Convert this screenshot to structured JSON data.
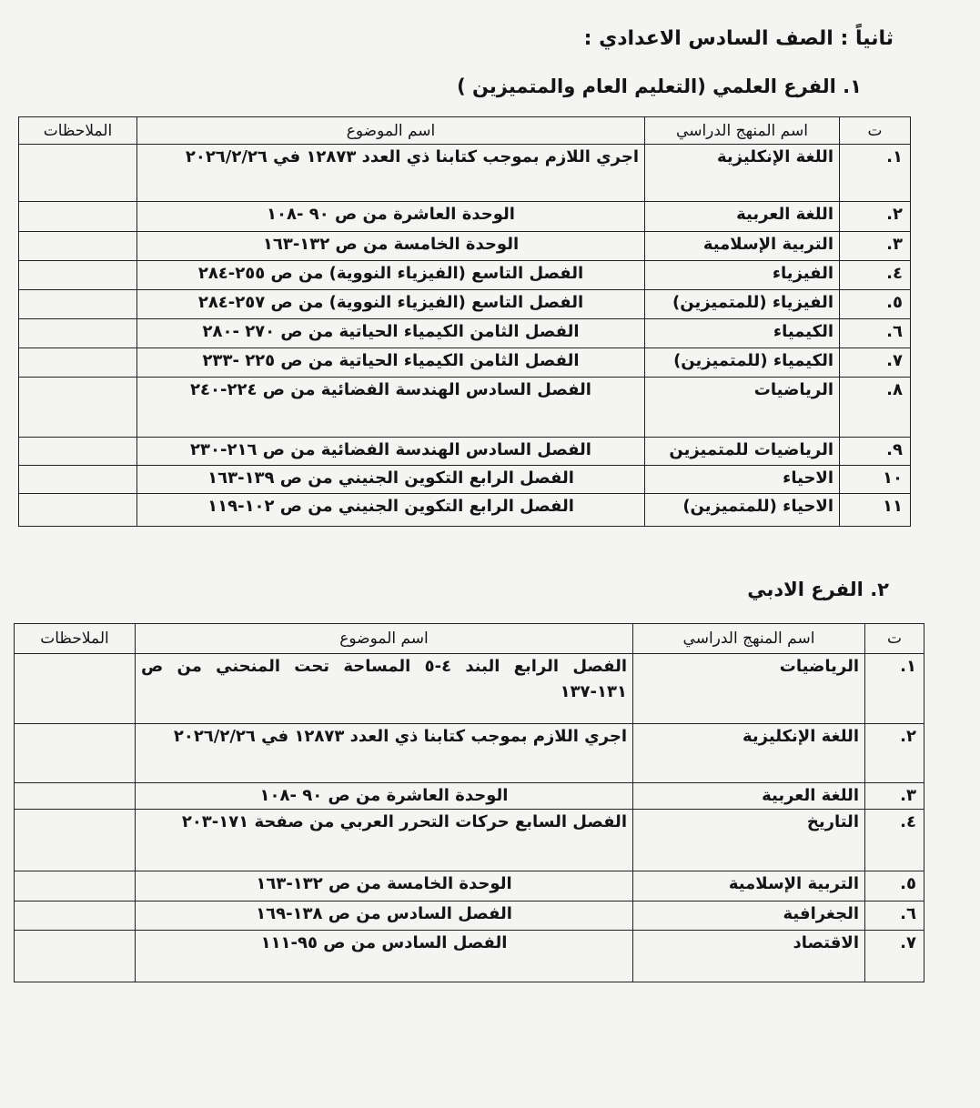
{
  "heading": "ثانياً : الصف السادس الاعدادي :",
  "columns": {
    "num": "ت",
    "subject": "اسم المنهج الدراسي",
    "topic": "اسم الموضوع",
    "notes": "الملاحظات"
  },
  "scientific": {
    "title": "١. الفرع العلمي (التعليم العام والمتميزين )",
    "rows": [
      {
        "num": "١.",
        "subject": "اللغة الإنكليزية",
        "topic": "اجري اللازم بموجب كتابنا ذي العدد ١٢٨٧٣ في ٢٠٢٦/٢/٢٦",
        "notes": ""
      },
      {
        "num": "٢.",
        "subject": "اللغة العربية",
        "topic": "الوحدة العاشرة من ص ٩٠ -١٠٨",
        "notes": ""
      },
      {
        "num": "٣.",
        "subject": "التربية الإسلامية",
        "topic": "الوحدة الخامسة من ص ١٣٢-١٦٣",
        "notes": ""
      },
      {
        "num": "٤.",
        "subject": "الفيزياء",
        "topic": "الفصل التاسع (الفيزياء النووية) من ص ٢٥٥-٢٨٤",
        "notes": ""
      },
      {
        "num": "٥.",
        "subject": "الفيزياء (للمتميزين)",
        "topic": "الفصل التاسع (الفيزياء النووية) من ص ٢٥٧-٢٨٤",
        "notes": ""
      },
      {
        "num": "٦.",
        "subject": "الكيمياء",
        "topic": "الفصل الثامن الكيمياء الحياتية من ص ٢٧٠ -٢٨٠",
        "notes": ""
      },
      {
        "num": "٧.",
        "subject": "الكيمياء (للمتميزين)",
        "topic": "الفصل الثامن الكيمياء الحياتية من ص ٢٢٥ -٢٣٣",
        "notes": ""
      },
      {
        "num": "٨.",
        "subject": "الرياضيات",
        "topic": "الفصل السادس الهندسة الفضائية من ص ٢٢٤-٢٤٠",
        "notes": ""
      },
      {
        "num": "٩.",
        "subject": "الرياضيات للمتميزين",
        "topic": "الفصل السادس الهندسة الفضائية من ص ٢١٦-٢٣٠",
        "notes": ""
      },
      {
        "num": "١٠",
        "subject": "الاحياء",
        "topic": "الفصل الرابع التكوين الجنيني من ص ١٣٩-١٦٣",
        "notes": ""
      },
      {
        "num": "١١",
        "subject": "الاحياء (للمتميزين)",
        "topic": "الفصل الرابع التكوين الجنيني من ص ١٠٢-١١٩",
        "notes": ""
      }
    ]
  },
  "literary": {
    "title": "٢. الفرع الادبي",
    "rows": [
      {
        "num": "١.",
        "subject": "الرياضيات",
        "topic": "الفصل الرابع البند ٤-٥ المساحة تحت المنحني من ص ١٣١-١٣٧",
        "notes": ""
      },
      {
        "num": "٢.",
        "subject": "اللغة الإنكليزية",
        "topic": "اجري اللازم بموجب كتابنا ذي العدد ١٢٨٧٣ في ٢٠٢٦/٢/٢٦",
        "notes": ""
      },
      {
        "num": "٣.",
        "subject": "اللغة العربية",
        "topic": "الوحدة العاشرة من ص ٩٠ -١٠٨",
        "notes": ""
      },
      {
        "num": "٤.",
        "subject": "التاريخ",
        "topic": "الفصل السابع حركات التحرر العربي من صفحة ١٧١-٢٠٣",
        "notes": ""
      },
      {
        "num": "٥.",
        "subject": "التربية الإسلامية",
        "topic": "الوحدة الخامسة من ص ١٣٢-١٦٣",
        "notes": ""
      },
      {
        "num": "٦.",
        "subject": "الجغرافية",
        "topic": "الفصل السادس من ص ١٣٨-١٦٩",
        "notes": ""
      },
      {
        "num": "٧.",
        "subject": "الاقتصاد",
        "topic": "الفصل السادس من ص ٩٥-١١١",
        "notes": ""
      }
    ]
  }
}
